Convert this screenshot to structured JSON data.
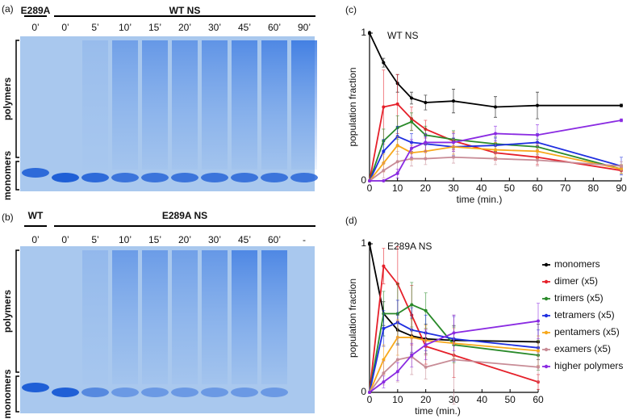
{
  "gels": [
    {
      "panel": "(a)",
      "groups": [
        {
          "label": "E289A",
          "lanes": [
            "0’"
          ]
        },
        {
          "label": "WT NS",
          "lanes": [
            "0’",
            "5’",
            "10’",
            "15’",
            "20’",
            "30’",
            "45’",
            "60’",
            "90’"
          ]
        }
      ],
      "ylabels": [
        "polymers",
        "monomers"
      ]
    },
    {
      "panel": "(b)",
      "groups": [
        {
          "label": "WT",
          "lanes": [
            "0’"
          ]
        },
        {
          "label": "E289A NS",
          "lanes": [
            "0’",
            "5’",
            "10’",
            "15’",
            "20’",
            "30’",
            "45’",
            "60’",
            "-"
          ]
        }
      ],
      "ylabels": [
        "polymers",
        "monomers"
      ]
    }
  ],
  "chart_data": [
    {
      "type": "line",
      "panel": "(c)",
      "title": "WT NS",
      "x_label": "time (min.)",
      "y_label": "population fraction",
      "x": [
        0,
        5,
        10,
        15,
        20,
        30,
        45,
        60,
        90
      ],
      "xlim": [
        0,
        90
      ],
      "xticks": [
        0,
        10,
        20,
        30,
        40,
        50,
        60,
        70,
        80,
        90
      ],
      "ylim": [
        0,
        1
      ],
      "yticks": [
        0,
        1
      ],
      "series": [
        {
          "color": "#000000",
          "values": [
            1,
            0.8,
            0.66,
            0.56,
            0.53,
            0.54,
            0.5,
            0.51,
            0.51
          ],
          "errors": [
            0.01,
            0.03,
            0.06,
            0.04,
            0.05,
            0.08,
            0.07,
            0.09,
            0.01
          ]
        },
        {
          "color": "#e5202a",
          "values": [
            0,
            0.5,
            0.52,
            0.42,
            0.35,
            0.27,
            0.19,
            0.16,
            0.07
          ],
          "errors": [
            0,
            0.25,
            0.2,
            0.08,
            0.06,
            0.06,
            0.05,
            0.05,
            0.02
          ]
        },
        {
          "color": "#2a8a2a",
          "values": [
            0,
            0.27,
            0.36,
            0.4,
            0.31,
            0.28,
            0.25,
            0.23,
            0.08
          ],
          "errors": [
            0,
            0.08,
            0.08,
            0.06,
            0.06,
            0.06,
            0.05,
            0.05,
            0.03
          ]
        },
        {
          "color": "#1f2fe0",
          "values": [
            0,
            0.2,
            0.3,
            0.26,
            0.25,
            0.23,
            0.24,
            0.26,
            0.1
          ],
          "errors": [
            0,
            0.08,
            0.07,
            0.06,
            0.05,
            0.06,
            0.05,
            0.06,
            0.06
          ]
        },
        {
          "color": "#f7a81b",
          "values": [
            0,
            0.12,
            0.24,
            0.19,
            0.2,
            0.23,
            0.21,
            0.2,
            0.08
          ],
          "errors": [
            0,
            0.06,
            0.06,
            0.05,
            0.05,
            0.05,
            0.05,
            0.05,
            0.03
          ]
        },
        {
          "color": "#c88c96",
          "values": [
            0,
            0.07,
            0.13,
            0.15,
            0.15,
            0.16,
            0.15,
            0.14,
            0.1
          ],
          "errors": [
            0,
            0.05,
            0.07,
            0.05,
            0.04,
            0.04,
            0.04,
            0.04,
            0.03
          ]
        },
        {
          "color": "#8a2be2",
          "values": [
            0,
            0,
            0.05,
            0.22,
            0.26,
            0.26,
            0.32,
            0.31,
            0.41
          ],
          "errors": [
            0,
            0,
            0.03,
            0.06,
            0.06,
            0.06,
            0.05,
            0.07,
            0.01
          ]
        }
      ]
    },
    {
      "type": "line",
      "panel": "(d)",
      "title": "E289A NS",
      "x_label": "time (min.)",
      "y_label": "population fraction",
      "x": [
        0,
        5,
        10,
        15,
        20,
        30,
        60
      ],
      "xlim": [
        0,
        60
      ],
      "xticks": [
        0,
        10,
        20,
        30,
        40,
        50,
        60
      ],
      "ylim": [
        0,
        1
      ],
      "yticks": [
        0,
        1
      ],
      "legend": "right",
      "series": [
        {
          "name": "monomers",
          "color": "#000000",
          "values": [
            1,
            0.53,
            0.42,
            0.38,
            0.36,
            0.35,
            0.34
          ],
          "errors": [
            0.01,
            0.08,
            0.1,
            0.12,
            0.1,
            0.1,
            0.12
          ]
        },
        {
          "name": "dimer (x5)",
          "color": "#e5202a",
          "values": [
            0,
            0.85,
            0.73,
            0.52,
            0.31,
            0.25,
            0.07
          ],
          "errors": [
            0,
            0.12,
            0.25,
            0.2,
            0.12,
            0.15,
            0.05
          ]
        },
        {
          "name": "trimers (x5)",
          "color": "#2a8a2a",
          "values": [
            0,
            0.53,
            0.53,
            0.59,
            0.55,
            0.32,
            0.25
          ],
          "errors": [
            0,
            0.15,
            0.2,
            0.15,
            0.12,
            0.12,
            0.1
          ]
        },
        {
          "name": "tetramers (x5)",
          "color": "#1f2fe0",
          "values": [
            0,
            0.43,
            0.47,
            0.42,
            0.4,
            0.36,
            0.3
          ],
          "errors": [
            0,
            0.12,
            0.15,
            0.15,
            0.12,
            0.15,
            0.12
          ]
        },
        {
          "name": "pentamers (x5)",
          "color": "#f7a81b",
          "values": [
            0,
            0.22,
            0.37,
            0.37,
            0.35,
            0.33,
            0.28
          ],
          "errors": [
            0,
            0.1,
            0.12,
            0.12,
            0.1,
            0.1,
            0.1
          ]
        },
        {
          "name": "examers (x5)",
          "color": "#c88c96",
          "values": [
            0,
            0.13,
            0.22,
            0.24,
            0.17,
            0.22,
            0.17
          ],
          "errors": [
            0,
            0.08,
            0.15,
            0.12,
            0.08,
            0.3,
            0.1
          ]
        },
        {
          "name": "higher polymers",
          "color": "#8a2be2",
          "values": [
            0,
            0.07,
            0.14,
            0.25,
            0.32,
            0.4,
            0.48
          ],
          "errors": [
            0,
            0.04,
            0.06,
            0.08,
            0.1,
            0.12,
            0.12
          ]
        }
      ]
    }
  ]
}
